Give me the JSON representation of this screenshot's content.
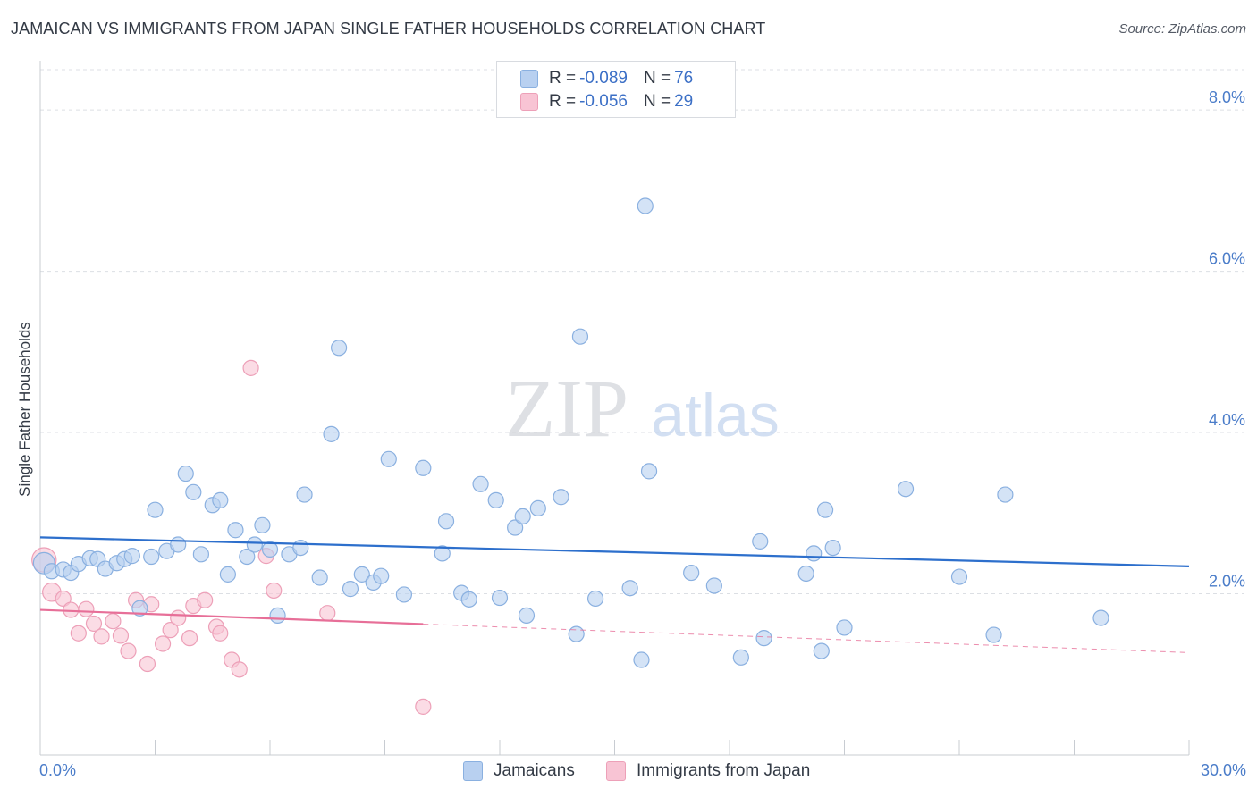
{
  "title": "JAMAICAN VS IMMIGRANTS FROM JAPAN SINGLE FATHER HOUSEHOLDS CORRELATION CHART",
  "source": "Source: ZipAtlas.com",
  "watermark": {
    "zip": "ZIP",
    "atlas": "atlas"
  },
  "colors": {
    "blue_fill": "#b8d0f0",
    "blue_stroke": "#8ab0e0",
    "blue_line": "#2d6fcc",
    "pink_fill": "#f8c4d4",
    "pink_stroke": "#eda0b8",
    "pink_line": "#e76f98",
    "tick_label": "#4a7cc9",
    "grid": "#dcdfe4"
  },
  "legend_top": {
    "rows": [
      {
        "r_label": "R = ",
        "r_value": "-0.089",
        "n_label": "N = ",
        "n_value": "76",
        "color": "#b8d0f0",
        "border": "#8ab0e0"
      },
      {
        "r_label": "R = ",
        "r_value": "-0.056",
        "n_label": "N = ",
        "n_value": "29",
        "color": "#f8c4d4",
        "border": "#eda0b8"
      }
    ]
  },
  "legend_bottom": [
    {
      "label": "Jamaicans",
      "color": "#b8d0f0",
      "border": "#8ab0e0"
    },
    {
      "label": "Immigrants from Japan",
      "color": "#f8c4d4",
      "border": "#eda0b8"
    }
  ],
  "chart_data": {
    "type": "scatter",
    "title": "JAMAICAN VS IMMIGRANTS FROM JAPAN SINGLE FATHER HOUSEHOLDS CORRELATION CHART",
    "xlabel": "",
    "ylabel": "Single Father Households",
    "xlim": [
      0,
      30
    ],
    "ylim": [
      0,
      8.5
    ],
    "x_tick_labels": [
      "0.0%",
      "30.0%"
    ],
    "y_ticks": [
      2,
      4,
      6,
      8
    ],
    "y_tick_labels": [
      "2.0%",
      "4.0%",
      "6.0%",
      "8.0%"
    ],
    "grid": true,
    "legend_position": "top-center",
    "series": [
      {
        "name": "Jamaicans",
        "r": -0.089,
        "n": 76,
        "trend": {
          "x": [
            0,
            30
          ],
          "y": [
            2.7,
            2.34
          ],
          "solid_to": 30
        },
        "points": [
          [
            0.1,
            2.38,
            1.4
          ],
          [
            0.3,
            2.28,
            1
          ],
          [
            0.6,
            2.3,
            1
          ],
          [
            0.8,
            2.26,
            1
          ],
          [
            1.0,
            2.37,
            1
          ],
          [
            1.3,
            2.44,
            1
          ],
          [
            1.5,
            2.43,
            1
          ],
          [
            1.7,
            2.31,
            1
          ],
          [
            2.0,
            2.38,
            1
          ],
          [
            2.2,
            2.43,
            1
          ],
          [
            2.4,
            2.47,
            1
          ],
          [
            2.6,
            1.82,
            1
          ],
          [
            2.9,
            2.46,
            1
          ],
          [
            3.0,
            3.04,
            1
          ],
          [
            3.3,
            2.53,
            1
          ],
          [
            3.6,
            2.61,
            1
          ],
          [
            3.8,
            3.49,
            1
          ],
          [
            4.0,
            3.26,
            1
          ],
          [
            4.2,
            2.49,
            1
          ],
          [
            4.5,
            3.1,
            1
          ],
          [
            4.7,
            3.16,
            1
          ],
          [
            4.9,
            2.24,
            1
          ],
          [
            5.1,
            2.79,
            1
          ],
          [
            5.4,
            2.46,
            1
          ],
          [
            5.6,
            2.61,
            1
          ],
          [
            5.8,
            2.85,
            1
          ],
          [
            6.0,
            2.55,
            1
          ],
          [
            6.2,
            1.73,
            1
          ],
          [
            6.5,
            2.49,
            1
          ],
          [
            6.8,
            2.57,
            1
          ],
          [
            6.9,
            3.23,
            1
          ],
          [
            7.3,
            2.2,
            1
          ],
          [
            7.6,
            3.98,
            1
          ],
          [
            7.8,
            5.05,
            1
          ],
          [
            8.1,
            2.06,
            1
          ],
          [
            8.4,
            2.24,
            1
          ],
          [
            8.7,
            2.14,
            1
          ],
          [
            8.9,
            2.22,
            1
          ],
          [
            9.1,
            3.67,
            1
          ],
          [
            9.5,
            1.99,
            1
          ],
          [
            10.0,
            3.56,
            1
          ],
          [
            10.5,
            2.5,
            1
          ],
          [
            10.6,
            2.9,
            1
          ],
          [
            11.0,
            2.01,
            1
          ],
          [
            11.2,
            1.93,
            1
          ],
          [
            11.5,
            3.36,
            1
          ],
          [
            11.9,
            3.16,
            1
          ],
          [
            12.0,
            1.95,
            1
          ],
          [
            12.4,
            2.82,
            1
          ],
          [
            12.6,
            2.96,
            1
          ],
          [
            12.7,
            1.73,
            1
          ],
          [
            13.0,
            3.06,
            1
          ],
          [
            13.6,
            3.2,
            1
          ],
          [
            14.0,
            1.5,
            1
          ],
          [
            14.1,
            5.19,
            1
          ],
          [
            14.5,
            1.94,
            1
          ],
          [
            15.4,
            2.07,
            1
          ],
          [
            15.7,
            1.18,
            1
          ],
          [
            15.8,
            6.81,
            1
          ],
          [
            15.9,
            3.52,
            1
          ],
          [
            17.0,
            2.26,
            1
          ],
          [
            17.6,
            2.1,
            1
          ],
          [
            18.3,
            1.21,
            1
          ],
          [
            18.8,
            2.65,
            1
          ],
          [
            18.9,
            1.45,
            1
          ],
          [
            20.0,
            2.25,
            1
          ],
          [
            20.2,
            2.5,
            1
          ],
          [
            20.4,
            1.29,
            1
          ],
          [
            20.5,
            3.04,
            1
          ],
          [
            20.7,
            2.57,
            1
          ],
          [
            21.0,
            1.58,
            1
          ],
          [
            22.6,
            3.3,
            1
          ],
          [
            24.0,
            2.21,
            1
          ],
          [
            24.9,
            1.49,
            1
          ],
          [
            25.2,
            3.23,
            1
          ],
          [
            27.7,
            1.7,
            1
          ]
        ]
      },
      {
        "name": "Immigrants from Japan",
        "r": -0.056,
        "n": 29,
        "trend": {
          "x": [
            0,
            30
          ],
          "y": [
            1.8,
            1.27
          ],
          "solid_to": 10
        },
        "points": [
          [
            0.1,
            2.42,
            1.6
          ],
          [
            0.3,
            2.02,
            1.2
          ],
          [
            0.6,
            1.94,
            1
          ],
          [
            0.8,
            1.8,
            1
          ],
          [
            1.0,
            1.51,
            1
          ],
          [
            1.2,
            1.81,
            1
          ],
          [
            1.4,
            1.63,
            1
          ],
          [
            1.6,
            1.47,
            1
          ],
          [
            1.9,
            1.66,
            1
          ],
          [
            2.1,
            1.48,
            1
          ],
          [
            2.3,
            1.29,
            1
          ],
          [
            2.5,
            1.92,
            1
          ],
          [
            2.8,
            1.13,
            1
          ],
          [
            2.9,
            1.87,
            1
          ],
          [
            3.2,
            1.38,
            1
          ],
          [
            3.4,
            1.55,
            1
          ],
          [
            3.6,
            1.7,
            1
          ],
          [
            3.9,
            1.45,
            1
          ],
          [
            4.0,
            1.85,
            1
          ],
          [
            4.3,
            1.92,
            1
          ],
          [
            4.6,
            1.59,
            1
          ],
          [
            4.7,
            1.51,
            1
          ],
          [
            5.0,
            1.18,
            1
          ],
          [
            5.2,
            1.06,
            1
          ],
          [
            5.5,
            4.8,
            1
          ],
          [
            5.9,
            2.47,
            1
          ],
          [
            6.1,
            2.04,
            1
          ],
          [
            7.5,
            1.76,
            1
          ],
          [
            10.0,
            0.6,
            1
          ]
        ]
      }
    ]
  }
}
